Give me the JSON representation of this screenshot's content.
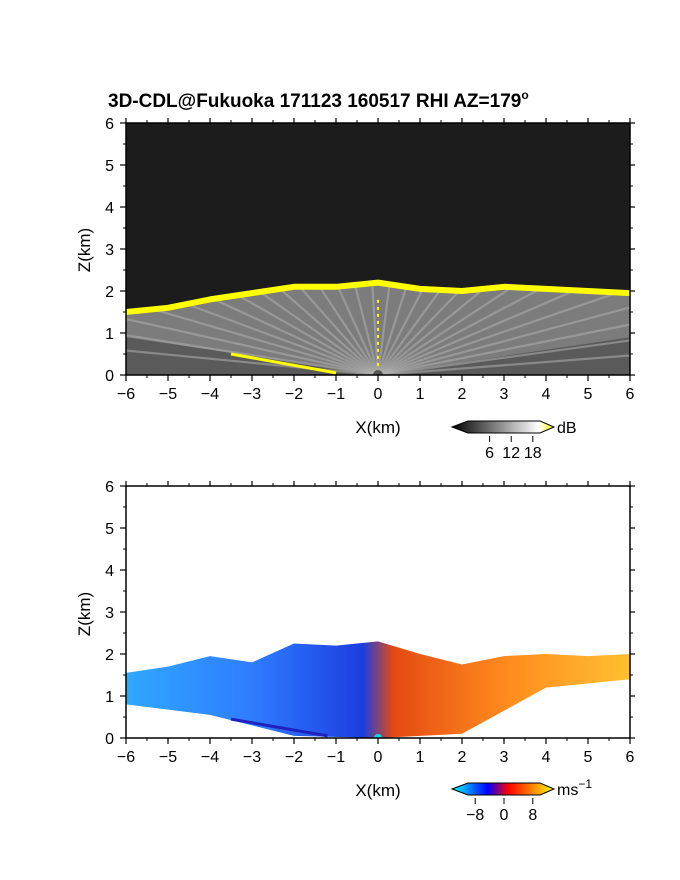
{
  "figure_title": "3D-CDL@Fukuoka 171123 160517 RHI AZ=179",
  "title_degree_mark": "o",
  "chart_data": [
    {
      "type": "heatmap",
      "field": "backscatter",
      "xlabel": "X(km)",
      "ylabel": "Z(km)",
      "xlim": [
        -6,
        6
      ],
      "ylim": [
        0,
        6
      ],
      "xticks": [
        "−6",
        "−5",
        "−4",
        "−3",
        "−2",
        "−1",
        "0",
        "1",
        "2",
        "3",
        "4",
        "5",
        "6"
      ],
      "yticks": [
        "0",
        "1",
        "2",
        "3",
        "4",
        "5",
        "6"
      ],
      "colorbar": {
        "unit": "dB",
        "ticks": [
          "6",
          "12",
          "18"
        ],
        "range": [
          0,
          20
        ],
        "colors": [
          "#000000",
          "#ffffff",
          "#ffff00"
        ]
      },
      "echo_top_km": [
        [
          -6,
          1.5
        ],
        [
          -5,
          1.6
        ],
        [
          -4,
          1.8
        ],
        [
          -3,
          1.95
        ],
        [
          -2,
          2.1
        ],
        [
          -1,
          2.1
        ],
        [
          0,
          2.2
        ],
        [
          1,
          2.05
        ],
        [
          2,
          2.0
        ],
        [
          3,
          2.1
        ],
        [
          4,
          2.05
        ],
        [
          5,
          2.0
        ],
        [
          6,
          1.95
        ]
      ]
    },
    {
      "type": "heatmap",
      "field": "radial_velocity",
      "xlabel": "X(km)",
      "ylabel": "Z(km)",
      "xlim": [
        -6,
        6
      ],
      "ylim": [
        0,
        6
      ],
      "xticks": [
        "−6",
        "−5",
        "−4",
        "−3",
        "−2",
        "−1",
        "0",
        "1",
        "2",
        "3",
        "4",
        "5",
        "6"
      ],
      "yticks": [
        "0",
        "1",
        "2",
        "3",
        "4",
        "5",
        "6"
      ],
      "colorbar": {
        "unit": "ms",
        "unit_exponent": "−1",
        "ticks": [
          "−8",
          "0",
          "8"
        ],
        "range": [
          -10,
          10
        ],
        "colors": [
          "#00ffff",
          "#0000ff",
          "#ff0000",
          "#ffff00"
        ]
      },
      "data_top_km": [
        [
          -6,
          1.55
        ],
        [
          -5,
          1.7
        ],
        [
          -4,
          1.95
        ],
        [
          -3,
          1.8
        ],
        [
          -2,
          2.25
        ],
        [
          -1,
          2.2
        ],
        [
          0,
          2.3
        ],
        [
          1,
          2.0
        ],
        [
          2,
          1.75
        ],
        [
          3,
          1.95
        ],
        [
          4,
          2.0
        ],
        [
          5,
          1.95
        ],
        [
          6,
          2.0
        ]
      ],
      "sign_change_x_km": 0
    }
  ]
}
